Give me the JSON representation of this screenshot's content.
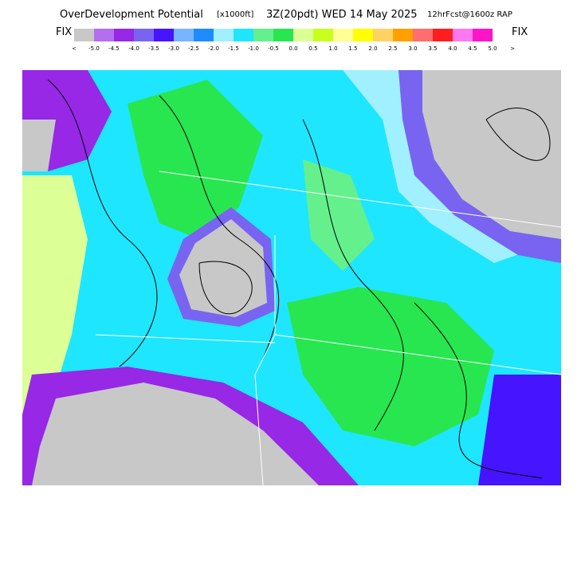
{
  "header": {
    "title": "OverDevelopment Potential",
    "units": "[x1000ft]",
    "valid": "3Z(20pdt) WED 14 May 2025",
    "forecast": "12hrFcst@1600z RAP"
  },
  "legend": {
    "left_label": "FIX",
    "right_label": "FIX",
    "colors": [
      "#c8c8c8",
      "#b46ef0",
      "#9628e6",
      "#7864f0",
      "#4614ff",
      "#78b4ff",
      "#1e8cff",
      "#a0f0ff",
      "#1ee6ff",
      "#64f08c",
      "#28e650",
      "#dcff96",
      "#c8ff1e",
      "#ffff96",
      "#ffff00",
      "#ffd264",
      "#ffa000",
      "#ff6e6e",
      "#ff1e1e",
      "#ff78f0",
      "#ff14c8"
    ],
    "labels": [
      "<",
      "-5.0",
      "-4.5",
      "-4.0",
      "-3.5",
      "-3.0",
      "-2.5",
      "-2.0",
      "-1.5",
      "-1.0",
      "-0.5",
      "0.0",
      "0.5",
      "1.0",
      "1.5",
      "2.0",
      "2.5",
      "3.0",
      "3.5",
      "4.0",
      "4.5",
      "5.0",
      ">"
    ]
  }
}
